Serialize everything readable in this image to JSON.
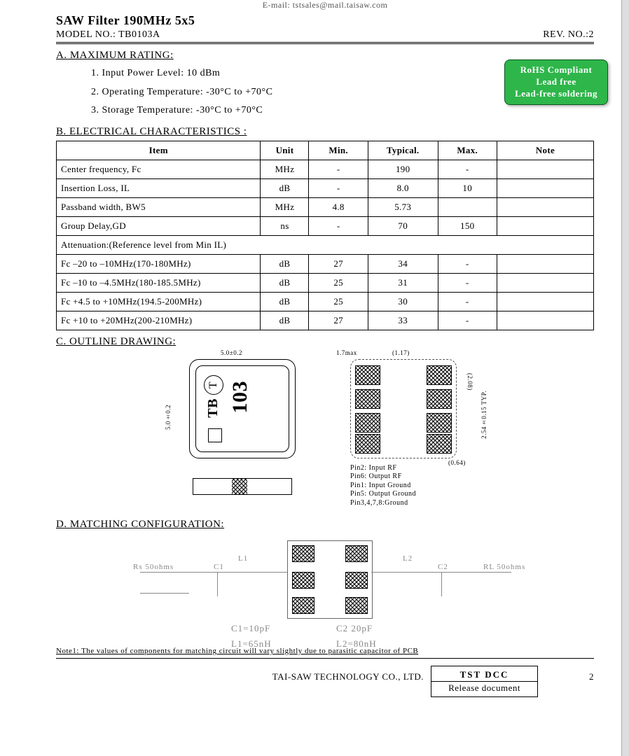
{
  "header": {
    "email_line": "E-mail: tstsales@mail.taisaw.com",
    "title": "SAW Filter 190MHz 5x5",
    "model_label": "MODEL NO.: TB0103A",
    "rev_label": "REV. NO.:2"
  },
  "rohs": {
    "line1": "RoHS Compliant",
    "line2": "Lead free",
    "line3": "Lead-free soldering"
  },
  "sectionA": {
    "head": "A. MAXIMUM RATING:",
    "items": [
      "1. Input Power Level: 10 dBm",
      "2. Operating Temperature: -30°C to +70°C",
      "3. Storage Temperature: -30°C to +70°C"
    ]
  },
  "sectionB": {
    "head": "B. ELECTRICAL CHARACTERISTICS :",
    "columns": [
      "Item",
      "Unit",
      "Min.",
      "Typical.",
      "Max.",
      "Note"
    ],
    "rows": [
      [
        "Center frequency, Fc",
        "MHz",
        "-",
        "190",
        "-",
        ""
      ],
      [
        "Insertion Loss, IL",
        "dB",
        "-",
        "8.0",
        "10",
        ""
      ],
      [
        "Passband width, BW5",
        "MHz",
        "4.8",
        "5.73",
        "",
        ""
      ],
      [
        "Group Delay,GD",
        "ns",
        "-",
        "70",
        "150",
        ""
      ]
    ],
    "att_head": "Attenuation:(Reference level from Min IL)",
    "att_rows": [
      [
        "Fc –20 to –10MHz(170-180MHz)",
        "dB",
        "27",
        "34",
        "-",
        ""
      ],
      [
        "Fc –10 to –4.5MHz(180-185.5MHz)",
        "dB",
        "25",
        "31",
        "-",
        ""
      ],
      [
        "Fc +4.5 to +10MHz(194.5-200MHz)",
        "dB",
        "25",
        "30",
        "-",
        ""
      ],
      [
        "Fc +10 to +20MHz(200-210MHz)",
        "dB",
        "27",
        "33",
        "-",
        ""
      ]
    ],
    "col_widths": [
      "38%",
      "9%",
      "11%",
      "13%",
      "11%",
      "18%"
    ]
  },
  "sectionC": {
    "head": "C. OUTLINE DRAWING:",
    "dims": {
      "width": "5.0±0.2",
      "height": "5.0±0.2",
      "thick": "1.7max",
      "pad_w": "(1.17)",
      "pad_h": "(2.08)",
      "pitch": "2.54±0.15 TYP.",
      "edge": "(0.64)"
    },
    "mark": "103",
    "tb": "TB",
    "tcircle": "T",
    "pins": [
      "Pin2: Input RF",
      "Pin6: Output RF",
      "Pin1: Input Ground",
      "Pin5: Output Ground",
      "Pin3,4,7,8:Ground"
    ]
  },
  "sectionD": {
    "head": "D. MATCHING CONFIGURATION:",
    "left_label": "Rs  50ohms",
    "right_label": "RL  50ohms",
    "l1_top": "L1",
    "l2_top": "L2",
    "c1_top2": "C1",
    "c2_top": "C2",
    "c1": "C1=10pF",
    "c2": "C2  20pF",
    "l1": "L1=65nH",
    "l2": "L2=80nH"
  },
  "note1": "Note1: The values of components for matching circuit will vary slightly due to parasitic capacitor of PCB",
  "footer": {
    "company": "TAI-SAW TECHNOLOGY CO., LTD.",
    "box_top": "TST DCC",
    "box_bot": "Release document",
    "page": "2"
  },
  "colors": {
    "rohs_bg": "#2eb64a"
  }
}
